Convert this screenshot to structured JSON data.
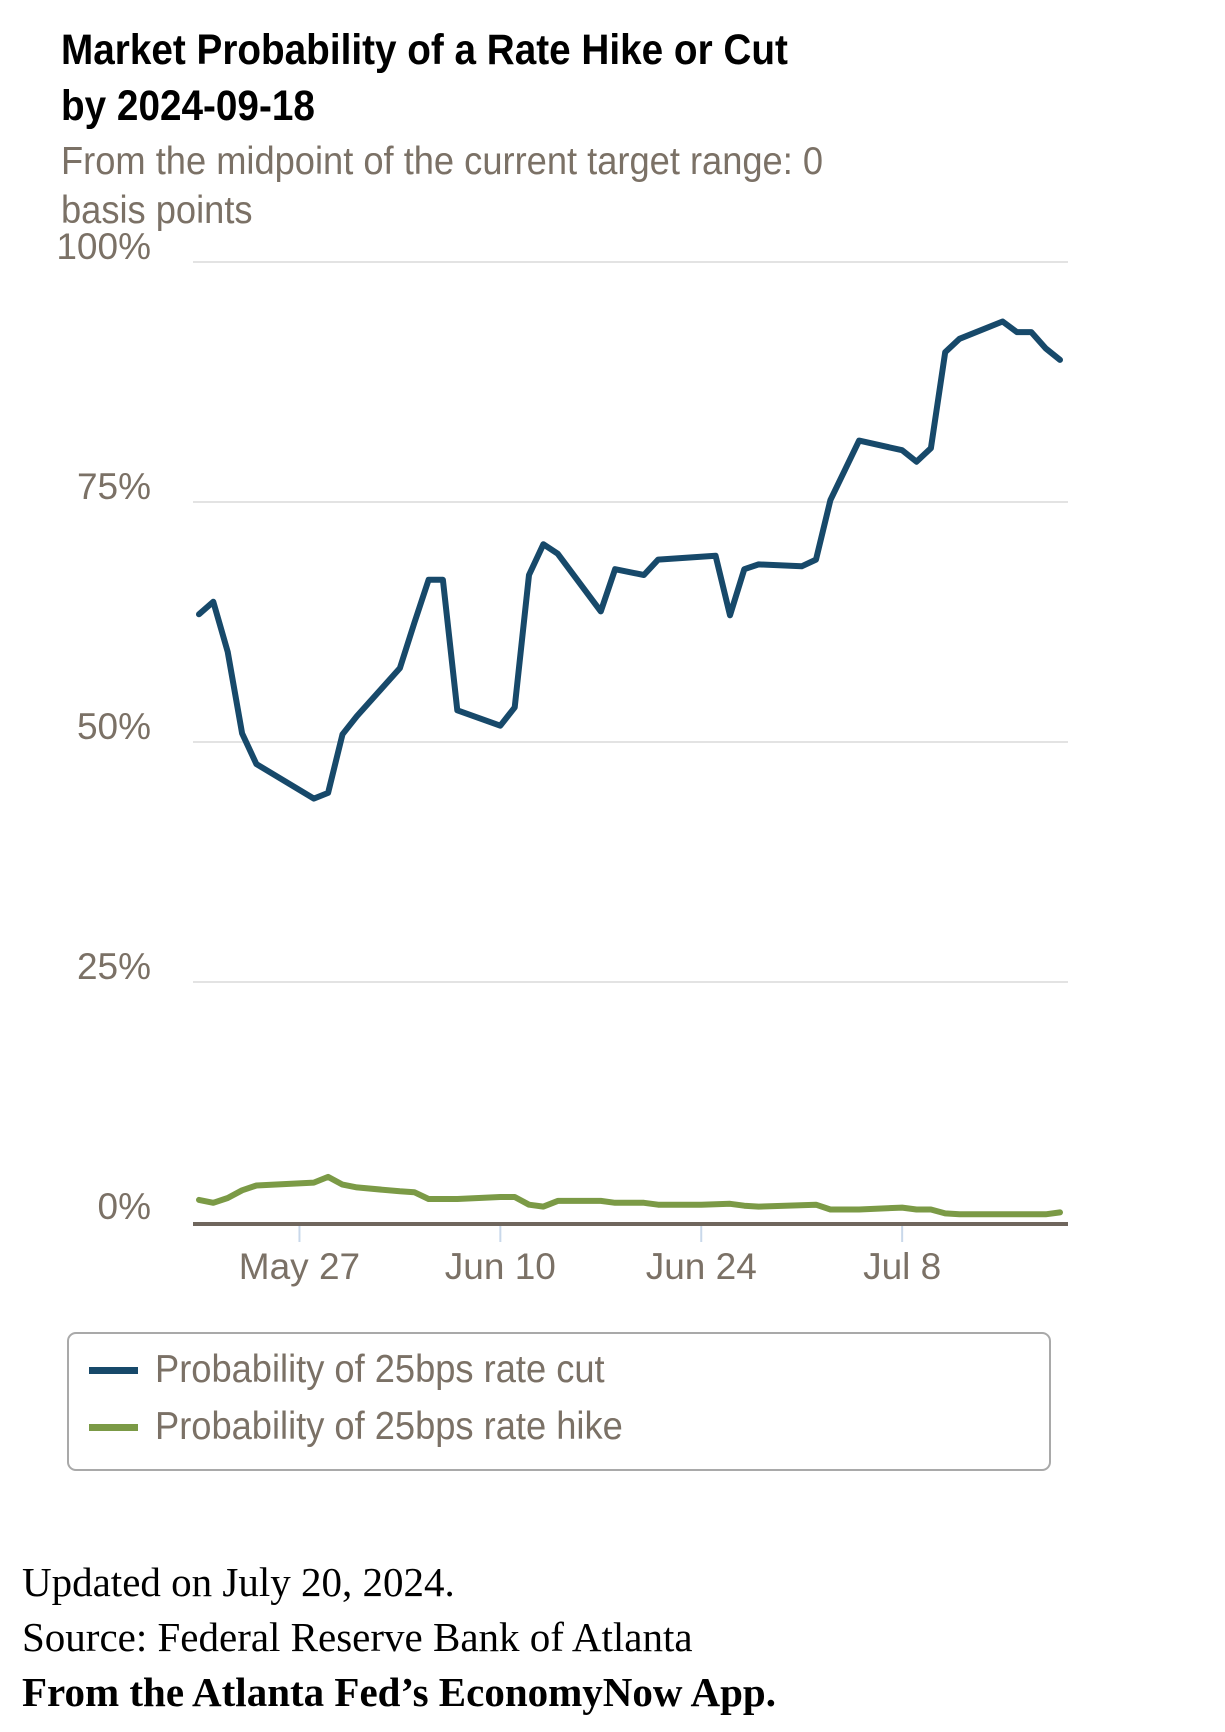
{
  "title_line1": "Market Probability of a Rate Hike or Cut",
  "title_line2": "by 2024-09-18",
  "subtitle_line1": "From the midpoint of the current target range: 0",
  "subtitle_line2": "basis points",
  "colors": {
    "cut": "#17496a",
    "hike": "#7b9a46",
    "axis": "#6f665d",
    "grid": "#e3e3e3",
    "tick": "#c9d8ea"
  },
  "footer": {
    "updated": "Updated on July 20, 2024.",
    "source": "Source: Federal Reserve Bank of Atlanta",
    "app": "From the Atlanta Fed’s EconomyNow App."
  },
  "chart_data": {
    "type": "line",
    "title": "Market Probability of a Rate Hike or Cut by 2024-09-18",
    "subtitle": "From the midpoint of the current target range: 0 basis points",
    "xlabel": "",
    "ylabel": "",
    "xlim": [
      "2024-05-20",
      "2024-07-19"
    ],
    "ylim": [
      0,
      100
    ],
    "grid": true,
    "y_ticks": [
      {
        "value": 100,
        "label": "100%"
      },
      {
        "value": 75,
        "label": "75%"
      },
      {
        "value": 50,
        "label": "50%"
      },
      {
        "value": 25,
        "label": "25%"
      },
      {
        "value": 0,
        "label": "0%"
      }
    ],
    "x_ticks": [
      {
        "date": "2024-05-27",
        "label": "May 27"
      },
      {
        "date": "2024-06-10",
        "label": "Jun 10"
      },
      {
        "date": "2024-06-24",
        "label": "Jun 24"
      },
      {
        "date": "2024-07-08",
        "label": "Jul 8"
      }
    ],
    "legend_position": "bottom",
    "series": [
      {
        "name": "Probability of 25bps rate cut",
        "color_key": "cut",
        "x": [
          "2024-05-20",
          "2024-05-21",
          "2024-05-22",
          "2024-05-23",
          "2024-05-24",
          "2024-05-28",
          "2024-05-29",
          "2024-05-30",
          "2024-05-31",
          "2024-06-03",
          "2024-06-04",
          "2024-06-05",
          "2024-06-06",
          "2024-06-07",
          "2024-06-10",
          "2024-06-11",
          "2024-06-12",
          "2024-06-13",
          "2024-06-14",
          "2024-06-17",
          "2024-06-18",
          "2024-06-20",
          "2024-06-21",
          "2024-06-25",
          "2024-06-26",
          "2024-06-27",
          "2024-06-28",
          "2024-07-01",
          "2024-07-02",
          "2024-07-03",
          "2024-07-05",
          "2024-07-08",
          "2024-07-09",
          "2024-07-10",
          "2024-07-11",
          "2024-07-12",
          "2024-07-15",
          "2024-07-16",
          "2024-07-17",
          "2024-07-18",
          "2024-07-19"
        ],
        "values": [
          63.3,
          64.6,
          59.4,
          50.9,
          47.7,
          44.1,
          44.7,
          50.8,
          52.7,
          57.7,
          62.4,
          66.9,
          66.9,
          53.3,
          51.7,
          53.6,
          67.4,
          70.6,
          69.6,
          63.6,
          68.0,
          67.4,
          69.0,
          69.4,
          63.2,
          68.0,
          68.5,
          68.3,
          69.0,
          75.2,
          81.4,
          80.4,
          79.2,
          80.6,
          90.6,
          92.0,
          93.8,
          92.7,
          92.7,
          91.0,
          89.8
        ]
      },
      {
        "name": "Probability of 25bps rate hike",
        "color_key": "hike",
        "x": [
          "2024-05-20",
          "2024-05-21",
          "2024-05-22",
          "2024-05-23",
          "2024-05-24",
          "2024-05-28",
          "2024-05-29",
          "2024-05-30",
          "2024-05-31",
          "2024-06-03",
          "2024-06-04",
          "2024-06-05",
          "2024-06-07",
          "2024-06-10",
          "2024-06-11",
          "2024-06-12",
          "2024-06-13",
          "2024-06-14",
          "2024-06-17",
          "2024-06-18",
          "2024-06-20",
          "2024-06-21",
          "2024-06-24",
          "2024-06-26",
          "2024-06-27",
          "2024-06-28",
          "2024-07-02",
          "2024-07-03",
          "2024-07-05",
          "2024-07-08",
          "2024-07-09",
          "2024-07-10",
          "2024-07-11",
          "2024-07-12",
          "2024-07-15",
          "2024-07-16",
          "2024-07-18",
          "2024-07-19"
        ],
        "values": [
          2.3,
          2.0,
          2.5,
          3.3,
          3.8,
          4.1,
          4.7,
          3.9,
          3.6,
          3.2,
          3.1,
          2.4,
          2.4,
          2.6,
          2.6,
          1.8,
          1.6,
          2.2,
          2.2,
          2.0,
          2.0,
          1.8,
          1.8,
          1.9,
          1.7,
          1.6,
          1.8,
          1.3,
          1.3,
          1.5,
          1.3,
          1.3,
          0.9,
          0.8,
          0.8,
          0.8,
          0.8,
          1.0
        ]
      }
    ]
  }
}
